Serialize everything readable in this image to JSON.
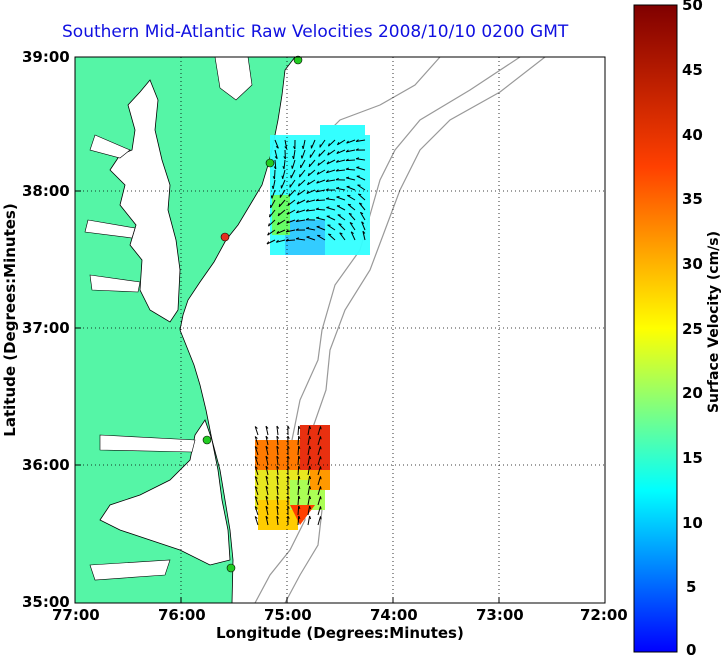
{
  "title": "Southern Mid-Atlantic Raw Velocities 2008/10/10 0200 GMT",
  "xlabel": "Longitude (Degrees:Minutes)",
  "ylabel": "Latitude (Degrees:Minutes)",
  "x_ticks": [
    "77:00",
    "76:00",
    "75:00",
    "74:00",
    "73:00",
    "72:00"
  ],
  "y_ticks": [
    "39:00",
    "38:00",
    "37:00",
    "36:00",
    "35:00"
  ],
  "colorbar": {
    "label": "Surface Velocity (cm/s)",
    "ticks": [
      "50",
      "45",
      "40",
      "35",
      "30",
      "25",
      "20",
      "15",
      "10",
      "5",
      "0"
    ],
    "range": [
      0,
      50
    ],
    "colormap": "jet"
  },
  "colors": {
    "title": "#1010e0",
    "land": "#55f5a6",
    "site_marker": "#22cc22",
    "site_marker_inactive": "#e23020",
    "bathymetry": "#999999"
  },
  "map": {
    "lon_range": [
      -77,
      -72
    ],
    "lat_range": [
      35,
      39
    ],
    "grid": "dotted"
  }
}
